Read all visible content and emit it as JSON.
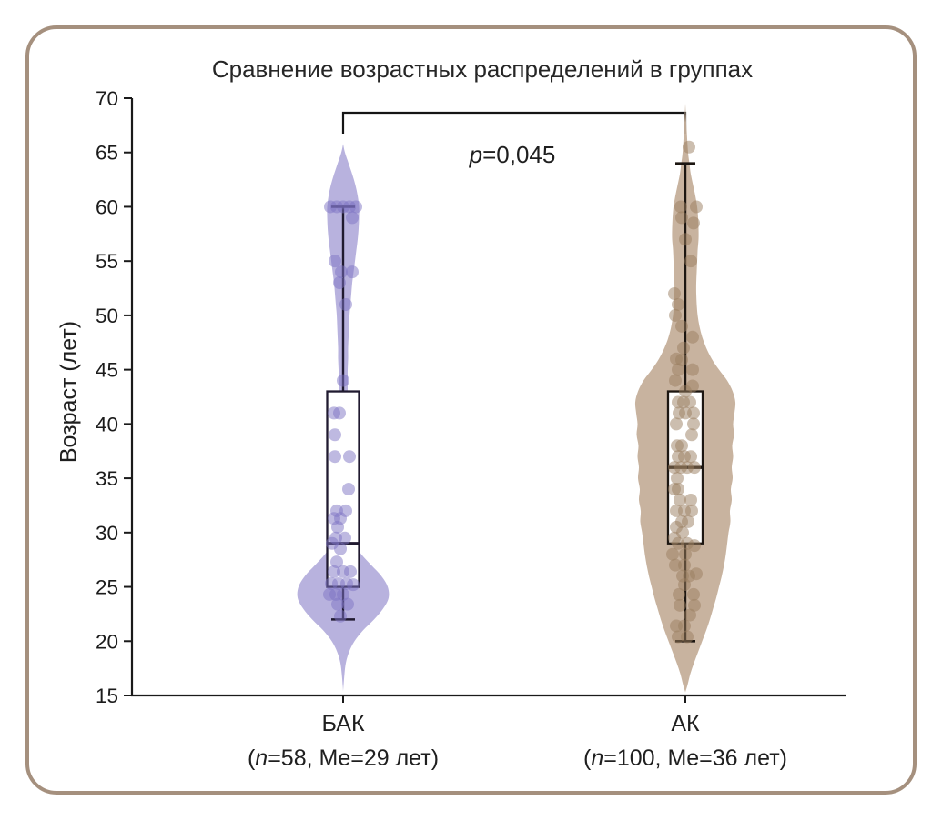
{
  "frame": {
    "border_color": "#a5907e",
    "background": "#ffffff"
  },
  "chart_data": {
    "type": "violin",
    "title": "Сравнение возрастных распределений в группах",
    "ylabel": "Возраст (лет)",
    "xlabel": "",
    "ylim": [
      15,
      70
    ],
    "yticks": [
      15,
      20,
      25,
      30,
      35,
      40,
      45,
      50,
      55,
      60,
      65,
      70
    ],
    "grid": false,
    "legend": "none",
    "axis_color": "#1a1a1a",
    "significance": {
      "p_symbol": "p",
      "p_rest": "=0,045",
      "p_value": "0,045",
      "compares": [
        "БАК",
        "АК"
      ]
    },
    "groups": [
      {
        "label": "БАК",
        "sublabel_pre": "(",
        "sublabel_italic": "n",
        "sublabel_post": "=58, Me=29 лет)",
        "n": 58,
        "median": 29,
        "q1": 25,
        "q3": 43,
        "whisker_low": 22,
        "whisker_high": 60,
        "violin_fill": "#b5afdd",
        "point_fill": "#7d74c4",
        "line_color": "#201a30",
        "profile": [
          [
            65.8,
            0
          ],
          [
            65,
            2
          ],
          [
            64,
            6
          ],
          [
            63,
            10
          ],
          [
            62,
            13.5
          ],
          [
            61,
            16
          ],
          [
            60,
            17.5
          ],
          [
            59,
            17.5
          ],
          [
            58,
            17
          ],
          [
            57,
            16
          ],
          [
            56,
            14.5
          ],
          [
            55,
            13
          ],
          [
            54,
            11.5
          ],
          [
            53,
            10
          ],
          [
            52,
            9
          ],
          [
            51,
            8
          ],
          [
            50,
            7
          ],
          [
            49,
            6.5
          ],
          [
            48,
            6
          ],
          [
            47,
            5.5
          ],
          [
            46,
            5.5
          ],
          [
            45,
            5
          ],
          [
            44,
            5
          ],
          [
            43,
            5
          ],
          [
            42,
            5
          ],
          [
            41,
            4.5
          ],
          [
            40,
            4.5
          ],
          [
            39,
            4.5
          ],
          [
            38,
            4.5
          ],
          [
            37,
            4.5
          ],
          [
            36,
            4
          ],
          [
            35,
            4
          ],
          [
            34,
            3.5
          ],
          [
            33,
            3.5
          ],
          [
            32,
            4
          ],
          [
            31,
            5
          ],
          [
            30,
            7.5
          ],
          [
            29,
            12
          ],
          [
            28,
            20
          ],
          [
            27,
            31
          ],
          [
            26,
            42
          ],
          [
            25,
            49
          ],
          [
            24,
            50
          ],
          [
            23,
            44
          ],
          [
            22,
            34
          ],
          [
            21,
            22
          ],
          [
            20,
            12.5
          ],
          [
            19,
            6.5
          ],
          [
            18,
            3
          ],
          [
            17,
            1.5
          ],
          [
            16,
            0.5
          ],
          [
            15.4,
            0
          ]
        ],
        "points": [
          [
            60,
            -14
          ],
          [
            60,
            -7
          ],
          [
            60,
            0
          ],
          [
            60,
            7
          ],
          [
            60,
            14
          ],
          [
            59,
            10
          ],
          [
            55,
            -9
          ],
          [
            54,
            -2
          ],
          [
            54,
            10
          ],
          [
            53,
            -4
          ],
          [
            51,
            3
          ],
          [
            44,
            0
          ],
          [
            41,
            -10
          ],
          [
            41,
            -4
          ],
          [
            39,
            -9
          ],
          [
            37,
            -9
          ],
          [
            37,
            7
          ],
          [
            34,
            6
          ],
          [
            32,
            -7
          ],
          [
            32,
            3
          ],
          [
            31.3,
            -10
          ],
          [
            31.3,
            -3
          ],
          [
            30.5,
            -6
          ],
          [
            29.5,
            -8
          ],
          [
            29.5,
            2
          ],
          [
            29,
            -12
          ],
          [
            28.5,
            -3
          ],
          [
            27.3,
            -7
          ],
          [
            26.4,
            -10
          ],
          [
            26.4,
            0
          ],
          [
            26.4,
            8
          ],
          [
            25.3,
            -13
          ],
          [
            25.3,
            -5
          ],
          [
            25.3,
            4
          ],
          [
            25.2,
            11
          ],
          [
            24.3,
            -15
          ],
          [
            24.3,
            -8
          ],
          [
            24.3,
            0
          ],
          [
            23.4,
            -6
          ],
          [
            23.4,
            5
          ],
          [
            22.3,
            -3
          ]
        ]
      },
      {
        "label": "АК",
        "sublabel_pre": "(",
        "sublabel_italic": "n",
        "sublabel_post": "=100, Me=36 лет)",
        "n": 100,
        "median": 36,
        "q1": 29,
        "q3": 43,
        "whisker_low": 20,
        "whisker_high": 64,
        "violin_fill": "#c6b09b",
        "point_fill": "#997d5f",
        "line_color": "#1c1611",
        "profile": [
          [
            69.5,
            0
          ],
          [
            67,
            1.5
          ],
          [
            65,
            3
          ],
          [
            64,
            4.5
          ],
          [
            63,
            6
          ],
          [
            62,
            8.5
          ],
          [
            61,
            11
          ],
          [
            60,
            13
          ],
          [
            59,
            14
          ],
          [
            58,
            14.5
          ],
          [
            57,
            14.5
          ],
          [
            56,
            13.5
          ],
          [
            55,
            13
          ],
          [
            54,
            12.5
          ],
          [
            53,
            12
          ],
          [
            52,
            12
          ],
          [
            51,
            12.5
          ],
          [
            50,
            13.5
          ],
          [
            49,
            15.5
          ],
          [
            48,
            18.5
          ],
          [
            47,
            23
          ],
          [
            46,
            29
          ],
          [
            45,
            37
          ],
          [
            44,
            46
          ],
          [
            43,
            52
          ],
          [
            42,
            55
          ],
          [
            41,
            54
          ],
          [
            40,
            52.5
          ],
          [
            39,
            53.5
          ],
          [
            38,
            51.5
          ],
          [
            37,
            52.5
          ],
          [
            36,
            51
          ],
          [
            35,
            52
          ],
          [
            34,
            50
          ],
          [
            33,
            51
          ],
          [
            32,
            49
          ],
          [
            31,
            49.5
          ],
          [
            30,
            47.5
          ],
          [
            29,
            46
          ],
          [
            28,
            44.5
          ],
          [
            27,
            42.5
          ],
          [
            26,
            40
          ],
          [
            25,
            37
          ],
          [
            24,
            34
          ],
          [
            23,
            30.5
          ],
          [
            22,
            27
          ],
          [
            21,
            23
          ],
          [
            20,
            18.5
          ],
          [
            19,
            14
          ],
          [
            18,
            9.5
          ],
          [
            17,
            5.5
          ],
          [
            16,
            2.5
          ],
          [
            15.3,
            0
          ]
        ],
        "points": [
          [
            65.5,
            4
          ],
          [
            60,
            -5
          ],
          [
            60,
            12
          ],
          [
            59,
            -4
          ],
          [
            58.5,
            9
          ],
          [
            57,
            0
          ],
          [
            55,
            6
          ],
          [
            52,
            -12
          ],
          [
            51,
            -8
          ],
          [
            50,
            -11
          ],
          [
            49,
            -4
          ],
          [
            48,
            8
          ],
          [
            47,
            -2
          ],
          [
            46,
            -10
          ],
          [
            45.9,
            -4
          ],
          [
            45,
            -8
          ],
          [
            45,
            8
          ],
          [
            44,
            -11
          ],
          [
            43.5,
            8
          ],
          [
            43,
            0
          ],
          [
            42,
            -8
          ],
          [
            42,
            -2
          ],
          [
            42,
            5
          ],
          [
            41,
            -7
          ],
          [
            41,
            0
          ],
          [
            41,
            9
          ],
          [
            40,
            -10
          ],
          [
            40,
            9
          ],
          [
            39,
            7
          ],
          [
            38,
            -9
          ],
          [
            38,
            -4
          ],
          [
            37,
            -8
          ],
          [
            37,
            -1
          ],
          [
            37,
            6
          ],
          [
            36,
            -12
          ],
          [
            36,
            -5
          ],
          [
            36,
            2
          ],
          [
            36,
            10
          ],
          [
            35,
            -9
          ],
          [
            34,
            -12
          ],
          [
            34,
            -8
          ],
          [
            33,
            -6
          ],
          [
            33,
            6
          ],
          [
            32,
            -10
          ],
          [
            32,
            -1
          ],
          [
            32,
            7
          ],
          [
            31,
            -4
          ],
          [
            31,
            3
          ],
          [
            30.5,
            -10
          ],
          [
            30,
            -3
          ],
          [
            29.5,
            -12
          ],
          [
            29,
            -8
          ],
          [
            29,
            2
          ],
          [
            28.8,
            10
          ],
          [
            28,
            -14
          ],
          [
            28,
            0
          ],
          [
            27,
            -11
          ],
          [
            27,
            -1
          ],
          [
            26.2,
            12
          ],
          [
            26,
            -3
          ],
          [
            26,
            4
          ],
          [
            25.2,
            -1
          ],
          [
            24.3,
            -7
          ],
          [
            24.3,
            9
          ],
          [
            23.3,
            -6
          ],
          [
            23.3,
            10
          ],
          [
            22.4,
            5
          ],
          [
            21.4,
            -10
          ],
          [
            21.4,
            -1
          ],
          [
            20.4,
            -8
          ],
          [
            20.4,
            2
          ]
        ]
      }
    ]
  }
}
